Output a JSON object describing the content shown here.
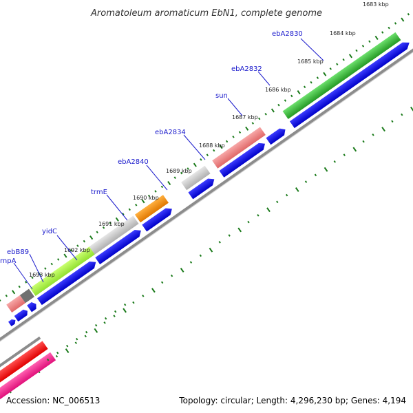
{
  "title": "Aromatoleum aromaticum EbN1, complete genome",
  "accession_label": "Accession: NC_006513",
  "topology_label": "Topology: circular; Length: 4,296,230 bp; Genes: 4,194",
  "ticks": [
    {
      "label": "1683 kbp"
    },
    {
      "label": "1684 kbp"
    },
    {
      "label": "1685 kbp"
    },
    {
      "label": "1686 kbp"
    },
    {
      "label": "1687 kbp"
    },
    {
      "label": "1688 kbp"
    },
    {
      "label": "1689 kbp"
    },
    {
      "label": "1690 kbp"
    },
    {
      "label": "1691 kbp"
    },
    {
      "label": "1692 kbp"
    },
    {
      "label": "1693 kbp"
    }
  ],
  "gene_labels": [
    {
      "name": "ebA2830"
    },
    {
      "name": "ebA2832"
    },
    {
      "name": "sun"
    },
    {
      "name": "ebA2834"
    },
    {
      "name": "ebA2840"
    },
    {
      "name": "trmE"
    },
    {
      "name": "yidC"
    },
    {
      "name": "ebB89"
    },
    {
      "name": "rnpA"
    }
  ],
  "colors": {
    "green": "#2db52d",
    "salmon": "#f08080",
    "gray": "#c8c8c8",
    "orange": "#f08c00",
    "lime": "#a8f040",
    "darkgray": "#707070",
    "blue": "#0000e6",
    "backbone": "#8c8c8c",
    "tick": "#1a7a1a",
    "red": "#ff0000",
    "magenta": "#ff1a8c",
    "label": "#1a1acc"
  }
}
